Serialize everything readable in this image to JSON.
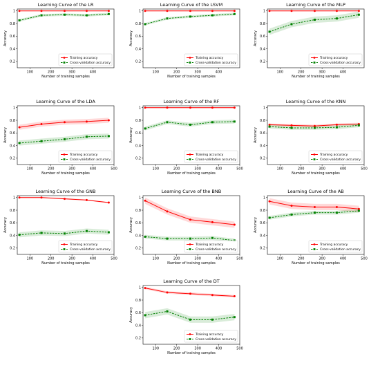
{
  "chart_data": [
    {
      "type": "line",
      "title": "Learning Curve of the LR",
      "xlabel": "Number of training samples",
      "ylabel": "Accuracy",
      "xlim": [
        40,
        500
      ],
      "ylim": [
        0.1,
        1.03
      ],
      "xticks": [
        100,
        200,
        300,
        400
      ],
      "yticks": [
        0.2,
        0.4,
        0.6,
        0.8,
        1.0
      ],
      "x": [
        50,
        155,
        265,
        370,
        475
      ],
      "legend": "bottom-right",
      "series": [
        {
          "name": "Training accuracy",
          "color": "#ff0000",
          "values": [
            1.0,
            1.0,
            1.0,
            1.0,
            1.0
          ],
          "band": 0.005
        },
        {
          "name": "Cross-validation accuracy",
          "color": "#008000",
          "values": [
            0.85,
            0.93,
            0.94,
            0.93,
            0.95
          ],
          "band": 0.02
        }
      ]
    },
    {
      "type": "line",
      "title": "Learning Curve of the LSVM",
      "xlabel": "Number of training samples",
      "ylabel": "Accuracy",
      "xlim": [
        40,
        500
      ],
      "ylim": [
        0.1,
        1.03
      ],
      "xticks": [
        100,
        200,
        300,
        400
      ],
      "yticks": [
        0.2,
        0.4,
        0.6,
        0.8,
        1.0
      ],
      "x": [
        50,
        155,
        265,
        370,
        475
      ],
      "legend": "bottom-right",
      "series": [
        {
          "name": "Training accuracy",
          "color": "#ff0000",
          "values": [
            1.0,
            1.0,
            1.0,
            1.0,
            1.0
          ],
          "band": 0.005
        },
        {
          "name": "Cross-validation accuracy",
          "color": "#008000",
          "values": [
            0.79,
            0.88,
            0.91,
            0.93,
            0.95
          ],
          "band": 0.02
        }
      ]
    },
    {
      "type": "line",
      "title": "Learning Curve of the MLP",
      "xlabel": "Number of training samples",
      "ylabel": "Accuracy",
      "xlim": [
        40,
        500
      ],
      "ylim": [
        0.1,
        1.03
      ],
      "xticks": [
        100,
        200,
        300,
        400
      ],
      "yticks": [
        0.2,
        0.4,
        0.6,
        0.8,
        1.0
      ],
      "x": [
        50,
        155,
        265,
        370,
        475
      ],
      "legend": "bottom-right",
      "series": [
        {
          "name": "Training accuracy",
          "color": "#ff0000",
          "values": [
            1.0,
            1.0,
            1.0,
            1.0,
            1.0
          ],
          "band": 0.005
        },
        {
          "name": "Cross-validation accuracy",
          "color": "#008000",
          "values": [
            0.67,
            0.79,
            0.86,
            0.88,
            0.94
          ],
          "band": 0.05
        }
      ]
    },
    {
      "type": "line",
      "title": "Learning Curve of the LDA",
      "xlabel": "Number of training samples",
      "ylabel": "Accuracy",
      "xlim": [
        40,
        500
      ],
      "ylim": [
        0.1,
        1.03
      ],
      "xticks": [
        100,
        200,
        300,
        400,
        500
      ],
      "yticks": [
        0.2,
        0.4,
        0.6,
        0.8,
        1.0
      ],
      "x": [
        50,
        155,
        265,
        370,
        475
      ],
      "legend": "bottom-right",
      "series": [
        {
          "name": "Training accuracy",
          "color": "#ff0000",
          "values": [
            0.69,
            0.74,
            0.77,
            0.78,
            0.8
          ],
          "band": 0.04
        },
        {
          "name": "Cross-validation accuracy",
          "color": "#008000",
          "values": [
            0.44,
            0.47,
            0.5,
            0.54,
            0.55
          ],
          "band": 0.04
        }
      ]
    },
    {
      "type": "line",
      "title": "Learning Curve of the RF",
      "xlabel": "Number of training samples",
      "ylabel": "Accuracy",
      "xlim": [
        40,
        500
      ],
      "ylim": [
        0.1,
        1.03
      ],
      "xticks": [
        100,
        200,
        300,
        400,
        500
      ],
      "yticks": [
        0.2,
        0.4,
        0.6,
        0.8,
        1.0
      ],
      "x": [
        50,
        155,
        265,
        370,
        475
      ],
      "legend": "bottom-right",
      "series": [
        {
          "name": "Training accuracy",
          "color": "#ff0000",
          "values": [
            1.0,
            1.0,
            1.0,
            1.0,
            1.0
          ],
          "band": 0.005
        },
        {
          "name": "Cross-validation accuracy",
          "color": "#008000",
          "values": [
            0.67,
            0.77,
            0.73,
            0.77,
            0.78
          ],
          "band": 0.03
        }
      ]
    },
    {
      "type": "line",
      "title": "Learning Curve of the KNN",
      "xlabel": "Number of training samples",
      "ylabel": "Accuracy",
      "xlim": [
        40,
        500
      ],
      "ylim": [
        0.1,
        1.03
      ],
      "xticks": [
        100,
        200,
        300,
        400,
        500
      ],
      "yticks": [
        0.2,
        0.4,
        0.6,
        0.8,
        1.0
      ],
      "x": [
        50,
        155,
        265,
        370,
        475
      ],
      "legend": "bottom-right",
      "series": [
        {
          "name": "Training accuracy",
          "color": "#ff0000",
          "values": [
            0.73,
            0.72,
            0.71,
            0.73,
            0.74
          ],
          "band": 0.02
        },
        {
          "name": "Cross-validation accuracy",
          "color": "#008000",
          "values": [
            0.7,
            0.68,
            0.68,
            0.69,
            0.72
          ],
          "band": 0.03
        }
      ]
    },
    {
      "type": "line",
      "title": "Learning Curve of the GNB",
      "xlabel": "Number of training samples",
      "ylabel": "Accuracy",
      "xlim": [
        40,
        500
      ],
      "ylim": [
        0.1,
        1.03
      ],
      "xticks": [
        100,
        200,
        300,
        400,
        500
      ],
      "yticks": [
        0.2,
        0.4,
        0.6,
        0.8,
        1.0
      ],
      "x": [
        50,
        155,
        265,
        370,
        475
      ],
      "legend": "bottom-right",
      "series": [
        {
          "name": "Training accuracy",
          "color": "#ff0000",
          "values": [
            1.0,
            1.0,
            0.98,
            0.96,
            0.92
          ],
          "band": 0.01
        },
        {
          "name": "Cross-validation accuracy",
          "color": "#008000",
          "values": [
            0.41,
            0.44,
            0.43,
            0.47,
            0.45
          ],
          "band": 0.04
        }
      ]
    },
    {
      "type": "line",
      "title": "Learning Curve of the BNB",
      "xlabel": "Number of training samples",
      "ylabel": "Accuracy",
      "xlim": [
        40,
        500
      ],
      "ylim": [
        0.1,
        1.03
      ],
      "xticks": [
        100,
        200,
        300,
        400,
        500
      ],
      "yticks": [
        0.2,
        0.4,
        0.6,
        0.8,
        1.0
      ],
      "x": [
        50,
        155,
        265,
        370,
        475
      ],
      "legend": "bottom-right",
      "series": [
        {
          "name": "Training accuracy",
          "color": "#ff0000",
          "values": [
            0.95,
            0.78,
            0.65,
            0.61,
            0.57
          ],
          "band": 0.05
        },
        {
          "name": "Cross-validation accuracy",
          "color": "#008000",
          "values": [
            0.38,
            0.35,
            0.35,
            0.36,
            0.32
          ],
          "band": 0.03
        }
      ]
    },
    {
      "type": "line",
      "title": "Learning Curve of the AB",
      "xlabel": "Number of training samples",
      "ylabel": "Accuracy",
      "xlim": [
        40,
        500
      ],
      "ylim": [
        0.1,
        1.03
      ],
      "xticks": [
        100,
        200,
        300,
        400,
        500
      ],
      "yticks": [
        0.2,
        0.4,
        0.6,
        0.8,
        1.0
      ],
      "x": [
        50,
        155,
        265,
        370,
        475
      ],
      "legend": "bottom-right",
      "series": [
        {
          "name": "Training accuracy",
          "color": "#ff0000",
          "values": [
            0.94,
            0.87,
            0.85,
            0.85,
            0.82
          ],
          "band": 0.05
        },
        {
          "name": "Cross-validation accuracy",
          "color": "#008000",
          "values": [
            0.68,
            0.73,
            0.76,
            0.76,
            0.79
          ],
          "band": 0.03
        }
      ]
    },
    {
      "type": "line",
      "title": "Learning Curve of the DT",
      "xlabel": "Number of training samples",
      "ylabel": "Accuracy",
      "xlim": [
        40,
        500
      ],
      "ylim": [
        0.1,
        1.03
      ],
      "xticks": [
        100,
        200,
        300,
        400,
        500
      ],
      "yticks": [
        0.2,
        0.4,
        0.6,
        0.8,
        1.0
      ],
      "x": [
        50,
        155,
        265,
        370,
        475
      ],
      "legend": "bottom-right",
      "series": [
        {
          "name": "Training accuracy",
          "color": "#ff0000",
          "values": [
            0.99,
            0.92,
            0.9,
            0.88,
            0.86
          ],
          "band": 0.02
        },
        {
          "name": "Cross-validation accuracy",
          "color": "#008000",
          "values": [
            0.56,
            0.62,
            0.49,
            0.49,
            0.53
          ],
          "band": 0.05
        }
      ]
    }
  ]
}
